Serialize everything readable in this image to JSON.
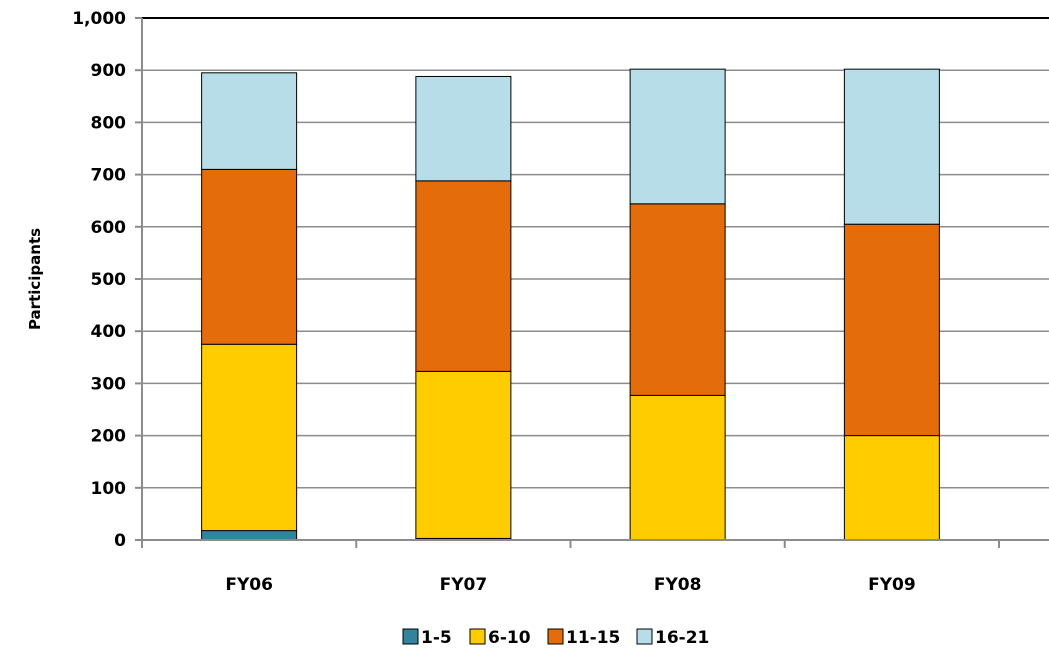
{
  "chart_data": {
    "type": "bar",
    "stacked": true,
    "categories": [
      "FY06",
      "FY07",
      "FY08",
      "FY09"
    ],
    "series": [
      {
        "name": "1-5",
        "color": "#31849B",
        "values": [
          18,
          3,
          0,
          0
        ]
      },
      {
        "name": "6-10",
        "color": "#FFCC00",
        "values": [
          357,
          320,
          277,
          200
        ]
      },
      {
        "name": "11-15",
        "color": "#E46C0A",
        "values": [
          335,
          365,
          367,
          405
        ]
      },
      {
        "name": "16-21",
        "color": "#B7DEE8",
        "values": [
          185,
          200,
          258,
          297
        ]
      }
    ],
    "ylabel": "Participants",
    "ylim": [
      0,
      1000
    ],
    "yticks": [
      "0",
      "100",
      "200",
      "300",
      "400",
      "500",
      "600",
      "700",
      "800",
      "900",
      "1,000"
    ],
    "grid": true,
    "legend_position": "bottom"
  }
}
